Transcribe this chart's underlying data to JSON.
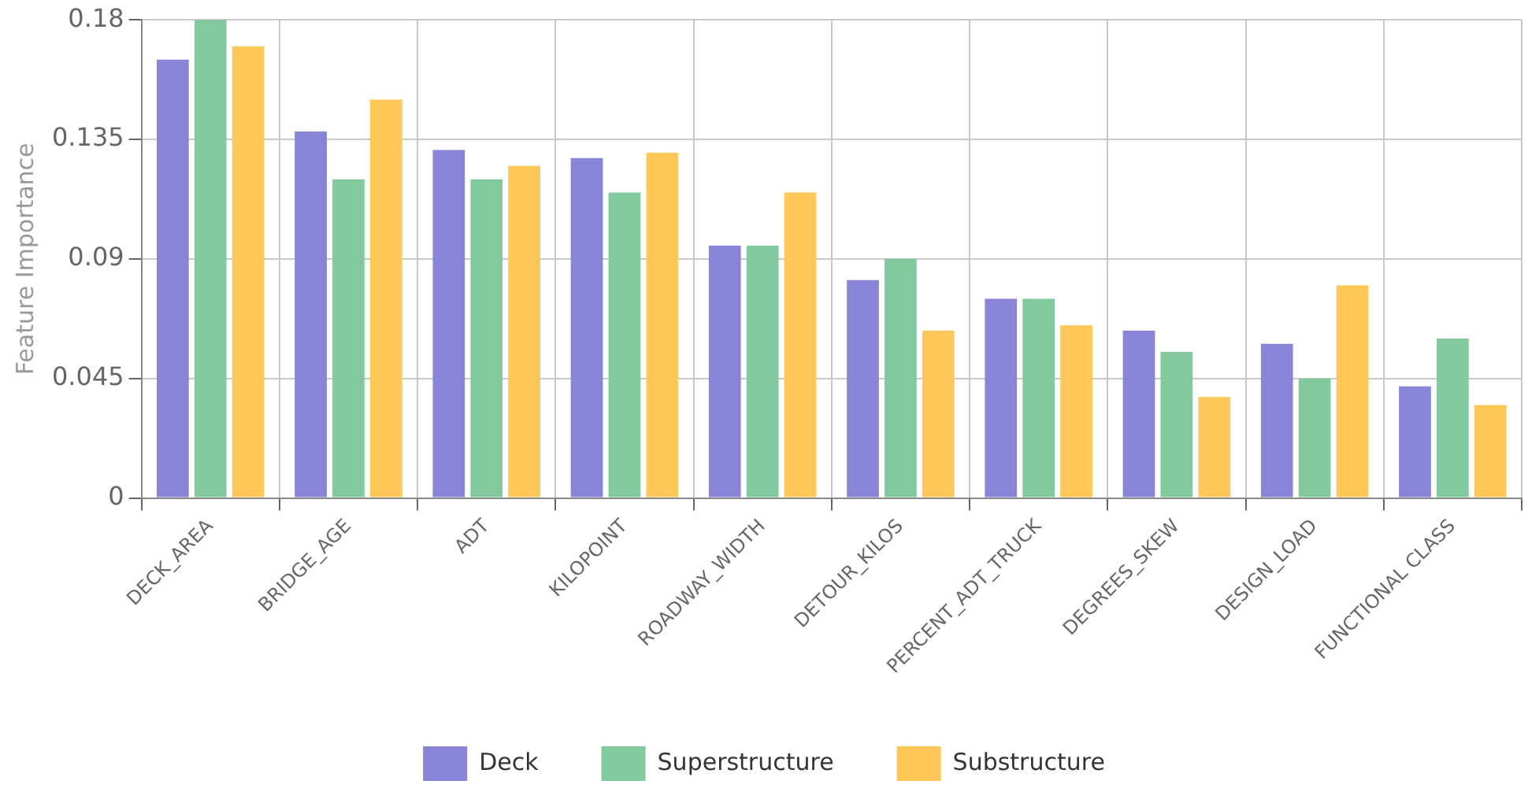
{
  "chart_data": {
    "type": "bar",
    "ylabel": "Feature Importance",
    "categories": [
      "DECK_AREA",
      "BRIDGE_AGE",
      "ADT",
      "KILOPOINT",
      "ROADWAY_WIDTH",
      "DETOUR_KILOS",
      "PERCENT_ADT_TRUCK",
      "DEGREES_SKEW",
      "DESIGN_LOAD",
      "FUNCTIONAL CLASS"
    ],
    "series": [
      {
        "name": "Deck",
        "color": "#8884d8",
        "values": [
          0.165,
          0.138,
          0.131,
          0.128,
          0.095,
          0.082,
          0.075,
          0.063,
          0.058,
          0.042
        ]
      },
      {
        "name": "Superstructure",
        "color": "#82ca9d",
        "values": [
          0.18,
          0.12,
          0.12,
          0.115,
          0.095,
          0.09,
          0.075,
          0.055,
          0.045,
          0.06
        ]
      },
      {
        "name": "Substructure",
        "color": "#ffc658",
        "values": [
          0.17,
          0.15,
          0.125,
          0.13,
          0.115,
          0.063,
          0.065,
          0.038,
          0.08,
          0.035
        ]
      }
    ],
    "ylim": [
      0,
      0.18
    ],
    "yticks": [
      0,
      0.045,
      0.09,
      0.135,
      0.18
    ],
    "grid": true,
    "legend": "bottom"
  }
}
